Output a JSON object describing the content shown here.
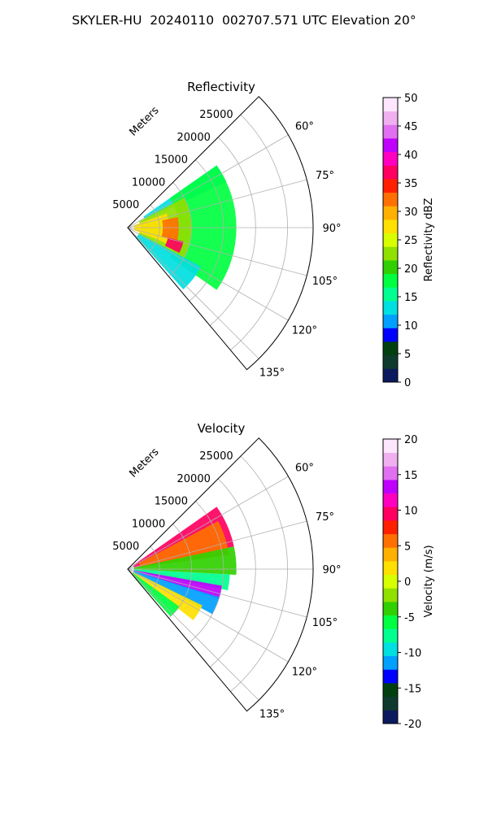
{
  "figure": {
    "title": "SKYLER-HU  20240110  002707.571 UTC Elevation 20°"
  },
  "chart_data": [
    {
      "type": "polar-sector",
      "title": "Reflectivity",
      "radial_label": "Meters",
      "radial_ticks": [
        5000,
        10000,
        15000,
        20000,
        25000
      ],
      "rlim": [
        0,
        29000
      ],
      "angle_ticks_deg": [
        60,
        75,
        90,
        105,
        120,
        135
      ],
      "angle_tick_labels": [
        "60°",
        "75°",
        "90°",
        "105°",
        "120°",
        "135°"
      ],
      "theta_range_deg": [
        45,
        140
      ],
      "grid": true,
      "colorbar": {
        "label": "Reflectivity dBZ",
        "range": [
          0,
          50
        ],
        "ticks": [
          0,
          5,
          10,
          15,
          20,
          25,
          30,
          35,
          40,
          45,
          50
        ],
        "colors": [
          "#0b1a5e",
          "#0f3b2e",
          "#004010",
          "#0000ff",
          "#00a0ff",
          "#00e0e0",
          "#00ff90",
          "#00ff40",
          "#30d000",
          "#90e000",
          "#d8ff00",
          "#ffe000",
          "#ffb000",
          "#ff7000",
          "#ff2000",
          "#ff0060",
          "#ff00c0",
          "#c000ff",
          "#e070f0",
          "#f0b0f0",
          "#ffe6ff"
        ]
      },
      "field": [
        {
          "az_deg": [
            55,
            65
          ],
          "range_m": [
            3000,
            17000
          ],
          "value": 12
        },
        {
          "az_deg": [
            55,
            125
          ],
          "range_m": [
            8000,
            17000
          ],
          "value": 18
        },
        {
          "az_deg": [
            62,
            122
          ],
          "range_m": [
            2000,
            10000
          ],
          "value": 22
        },
        {
          "az_deg": [
            70,
            112
          ],
          "range_m": [
            1000,
            6500
          ],
          "value": 27
        },
        {
          "az_deg": [
            118,
            138
          ],
          "range_m": [
            2000,
            13000
          ],
          "value": 14
        },
        {
          "az_deg": [
            78,
            105
          ],
          "range_m": [
            5500,
            8000
          ],
          "value": 32
        },
        {
          "az_deg": [
            104,
            116
          ],
          "range_m": [
            6500,
            9000
          ],
          "value": 38
        }
      ]
    },
    {
      "type": "polar-sector",
      "title": "Velocity",
      "radial_label": "Meters",
      "radial_ticks": [
        5000,
        10000,
        15000,
        20000,
        25000
      ],
      "rlim": [
        0,
        29000
      ],
      "angle_ticks_deg": [
        60,
        75,
        90,
        105,
        120,
        135
      ],
      "angle_tick_labels": [
        "60°",
        "75°",
        "90°",
        "105°",
        "120°",
        "135°"
      ],
      "theta_range_deg": [
        45,
        140
      ],
      "grid": true,
      "colorbar": {
        "label": "Velocity (m/s)",
        "range": [
          -20,
          20
        ],
        "ticks": [
          -20,
          -15,
          -10,
          -5,
          0,
          5,
          10,
          15,
          20
        ],
        "colors": [
          "#0b1a5e",
          "#0f3b2e",
          "#004010",
          "#0000ff",
          "#00a0ff",
          "#00e0e0",
          "#00ff90",
          "#00ff40",
          "#30d000",
          "#90e000",
          "#d8ff00",
          "#ffe000",
          "#ffb000",
          "#ff7000",
          "#ff2000",
          "#ff0060",
          "#ff00c0",
          "#c000ff",
          "#e070f0",
          "#f0b0f0",
          "#ffe6ff"
        ]
      },
      "field": [
        {
          "az_deg": [
            55,
            78
          ],
          "range_m": [
            1000,
            17000
          ],
          "value": 9
        },
        {
          "az_deg": [
            62,
            82
          ],
          "range_m": [
            2000,
            16000
          ],
          "value": 5
        },
        {
          "az_deg": [
            78,
            93
          ],
          "range_m": [
            1000,
            17000
          ],
          "value": -4
        },
        {
          "az_deg": [
            93,
            102
          ],
          "range_m": [
            1000,
            16000
          ],
          "value": -8
        },
        {
          "az_deg": [
            100,
            108
          ],
          "range_m": [
            1000,
            15000
          ],
          "value": 14
        },
        {
          "az_deg": [
            107,
            118
          ],
          "range_m": [
            1000,
            15000
          ],
          "value": -11
        },
        {
          "az_deg": [
            116,
            128
          ],
          "range_m": [
            1000,
            13000
          ],
          "value": 1
        },
        {
          "az_deg": [
            126,
            138
          ],
          "range_m": [
            1000,
            10000
          ],
          "value": -6
        }
      ]
    }
  ]
}
